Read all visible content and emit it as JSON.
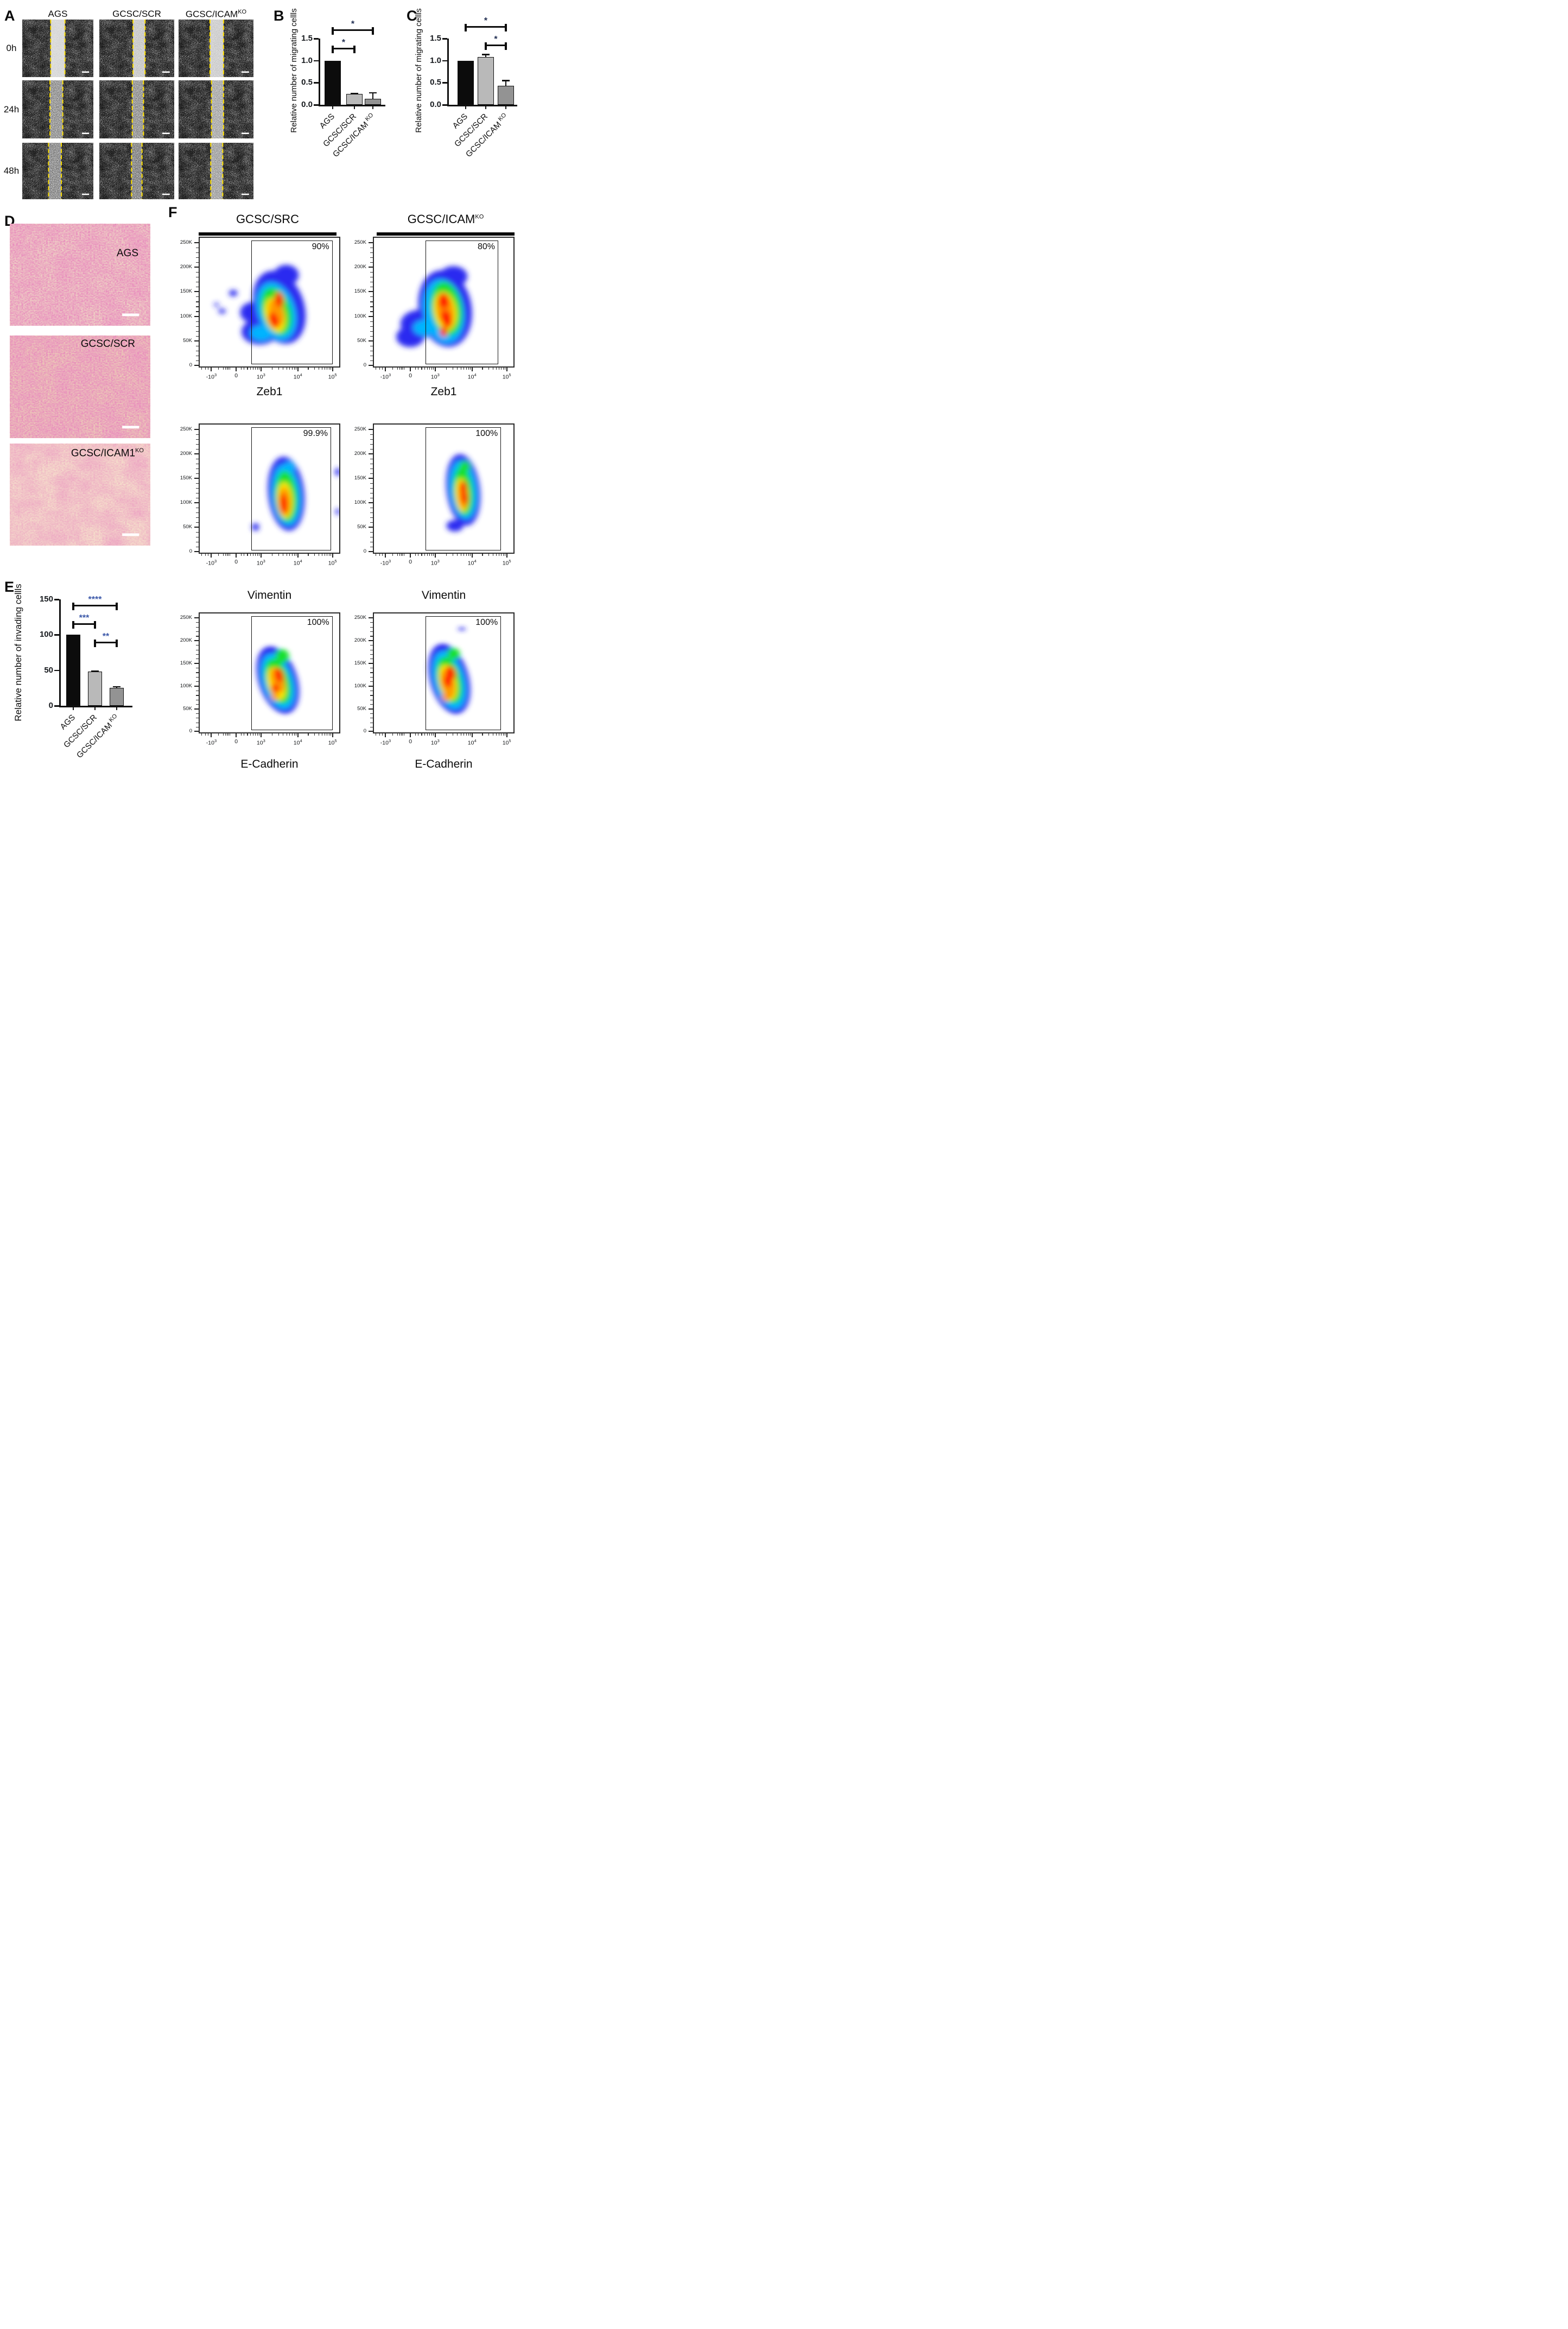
{
  "panels": {
    "A": {
      "letter": "A",
      "col_headers": [
        {
          "t": "AGS"
        },
        {
          "t": "GCSC/SCR"
        },
        {
          "t": "GCSC/ICAM",
          "sup": "KO"
        }
      ],
      "row_labels": [
        "0h",
        "24h",
        "48h"
      ]
    },
    "B": {
      "letter": "B"
    },
    "C": {
      "letter": "C"
    },
    "D": {
      "letter": "D",
      "image_labels": [
        {
          "t": "AGS"
        },
        {
          "t": "GCSC/SCR"
        },
        {
          "t": "GCSC/ICAM1",
          "sup": "KO"
        }
      ]
    },
    "E": {
      "letter": "E"
    },
    "F": {
      "letter": "F",
      "col_headers": [
        {
          "t": "GCSC/SRC"
        },
        {
          "t": "GCSC/ICAM",
          "sup": "KO"
        }
      ]
    }
  },
  "colors": {
    "bar_colors": [
      "#0c0c0c",
      "#b9b9b9",
      "#939393"
    ],
    "axis": "#101010",
    "gate_line": "#151515",
    "yellow_dash": "#ffe000",
    "flow_palette": [
      "#2a2cf0",
      "#00b4ff",
      "#15e02e",
      "#ffe600",
      "#ff9800",
      "#ff1d00"
    ]
  },
  "flow_axes": {
    "y_ticks": [
      "250K",
      "200K",
      "150K",
      "100K",
      "50K",
      "0"
    ],
    "x_ticks": [
      {
        "t": "-10",
        "sup": "3"
      },
      {
        "t": "0"
      },
      {
        "t": "10",
        "sup": "3"
      },
      {
        "t": "10",
        "sup": "4"
      },
      {
        "t": "10",
        "sup": "5"
      }
    ]
  },
  "chart_data": [
    {
      "id": "B",
      "type": "bar",
      "ylabel": "Relative number of migrating cellls",
      "categories": [
        {
          "t": "AGS"
        },
        {
          "t": "GCSC/SCR"
        },
        {
          "t": "GCSC/ICAM",
          "sup": "KO"
        }
      ],
      "values": [
        1.0,
        0.24,
        0.13
      ],
      "errors": [
        0,
        0.035,
        0.15
      ],
      "ylim": [
        0,
        1.5
      ],
      "yticks": [
        "0.0",
        "0.5",
        "1.0",
        "1.5"
      ],
      "sig_color": "#1e2c50",
      "significance": [
        {
          "pair": [
            0,
            2
          ],
          "label": "*"
        },
        {
          "pair": [
            0,
            1
          ],
          "label": "*"
        }
      ]
    },
    {
      "id": "C",
      "type": "bar",
      "ylabel": "Relative number of migrating cellls",
      "categories": [
        {
          "t": "AGS"
        },
        {
          "t": "GCSC/SCR"
        },
        {
          "t": "GCSC/ICAM",
          "sup": "KO"
        }
      ],
      "values": [
        1.0,
        1.08,
        0.43
      ],
      "errors": [
        0,
        0.07,
        0.13
      ],
      "ylim": [
        0,
        1.5
      ],
      "yticks": [
        "0.0",
        "0.5",
        "1.0",
        "1.5"
      ],
      "sig_color": "#1e2c50",
      "significance": [
        {
          "pair": [
            0,
            2
          ],
          "label": "*"
        },
        {
          "pair": [
            1,
            2
          ],
          "label": "*"
        }
      ]
    },
    {
      "id": "E",
      "type": "bar",
      "ylabel": "Relative number of invading cellls",
      "categories": [
        {
          "t": "AGS"
        },
        {
          "t": "GCSC/SCR"
        },
        {
          "t": "GCSC/ICAM",
          "sup": "KO"
        }
      ],
      "values": [
        100,
        48,
        25
      ],
      "errors": [
        0,
        1.5,
        2.5
      ],
      "ylim": [
        0,
        150
      ],
      "yticks": [
        "0",
        "50",
        "100",
        "150"
      ],
      "sig_color": "#3a57a8",
      "significance": [
        {
          "pair": [
            0,
            2
          ],
          "label": "****"
        },
        {
          "pair": [
            0,
            1
          ],
          "label": "***"
        },
        {
          "pair": [
            1,
            2
          ],
          "label": "**"
        }
      ]
    },
    {
      "id": "F1",
      "type": "flow-density",
      "group": "GCSC/SRC",
      "marker": "Zeb1",
      "gated_percent": "90%",
      "gate_right": 0.945,
      "blob": [
        [
          0,
          57,
          54,
          18,
          29,
          -15
        ],
        [
          0,
          62,
          29,
          9,
          8,
          0
        ],
        [
          0,
          43,
          73,
          13,
          10,
          0
        ],
        [
          0,
          38,
          58,
          9,
          8,
          0
        ],
        [
          0,
          24,
          43,
          3,
          2.5,
          0
        ],
        [
          0,
          16,
          57,
          2.5,
          2,
          0
        ],
        [
          0,
          12,
          52,
          1.6,
          1.6,
          0
        ],
        [
          1,
          55,
          57,
          13.5,
          23,
          -15
        ],
        [
          1,
          44,
          74,
          8,
          6,
          0
        ],
        [
          2,
          55,
          57,
          10.5,
          19,
          -15
        ],
        [
          3,
          54,
          60,
          7,
          13.5,
          -12
        ],
        [
          4,
          55,
          58,
          5.2,
          10.5,
          -12
        ],
        [
          5,
          57,
          48,
          3,
          6,
          -8
        ],
        [
          5,
          53,
          64,
          3.4,
          6.5,
          -18
        ]
      ]
    },
    {
      "id": "F2",
      "type": "flow-density",
      "group": "GCSC/ICAM KO",
      "marker": "Zeb1",
      "gated_percent": "80%",
      "gate_right": 0.885,
      "blob": [
        [
          0,
          51,
          55,
          19,
          30,
          -8
        ],
        [
          0,
          33,
          67,
          14,
          11,
          0
        ],
        [
          0,
          26,
          77,
          10,
          8,
          0
        ],
        [
          0,
          57,
          30,
          10,
          8,
          0
        ],
        [
          0,
          44,
          38,
          7,
          6,
          0
        ],
        [
          1,
          50,
          57,
          14.5,
          25,
          -8
        ],
        [
          1,
          36,
          70,
          8,
          6,
          0
        ],
        [
          2,
          52,
          55,
          11,
          21,
          -8
        ],
        [
          3,
          51,
          57,
          8,
          15,
          -8
        ],
        [
          4,
          51,
          56,
          6,
          12,
          -8
        ],
        [
          5,
          50,
          49,
          4,
          6,
          -5
        ],
        [
          5,
          52,
          63,
          4,
          7,
          -15
        ],
        [
          5,
          50,
          73,
          2.6,
          4,
          0
        ]
      ]
    },
    {
      "id": "F3",
      "type": "flow-density",
      "group": "GCSC/SRC",
      "marker": "Vimentin",
      "gated_percent": "99.9%",
      "gate_right": 0.935,
      "blob": [
        [
          0,
          62,
          54,
          13,
          29,
          -5
        ],
        [
          0,
          40,
          80,
          2.6,
          3,
          0
        ],
        [
          0,
          99,
          37,
          2,
          3.2,
          0
        ],
        [
          0,
          99,
          68,
          1.6,
          2.6,
          0
        ],
        [
          1,
          62,
          55,
          10,
          24,
          -5
        ],
        [
          1,
          64,
          34,
          4,
          5,
          0
        ],
        [
          2,
          62,
          56,
          8,
          20,
          -4
        ],
        [
          3,
          61,
          59,
          5.5,
          14,
          -3
        ],
        [
          4,
          61,
          60,
          4.2,
          11,
          -3
        ],
        [
          5,
          60,
          62,
          2.8,
          8,
          -2
        ]
      ]
    },
    {
      "id": "F4",
      "type": "flow-density",
      "group": "GCSC/ICAM KO",
      "marker": "Vimentin",
      "gated_percent": "100%",
      "gate_right": 0.905,
      "blob": [
        [
          0,
          64,
          51,
          12,
          28,
          -6
        ],
        [
          0,
          58,
          79,
          6,
          4.5,
          0
        ],
        [
          1,
          64,
          51,
          9.5,
          23,
          -6
        ],
        [
          2,
          64,
          52,
          7,
          19,
          -5
        ],
        [
          2,
          65,
          33,
          4,
          4.5,
          0
        ],
        [
          3,
          63,
          55,
          4.6,
          13,
          -4
        ],
        [
          4,
          64,
          56,
          3.6,
          10,
          -4
        ],
        [
          5,
          64,
          49,
          2.6,
          5,
          -3
        ],
        [
          5,
          65,
          57,
          2.4,
          5,
          -8
        ]
      ]
    },
    {
      "id": "F5",
      "type": "flow-density",
      "group": "GCSC/SRC",
      "marker": "E-Cadherin",
      "gated_percent": "100%",
      "gate_right": 0.945,
      "blob": [
        [
          0,
          56,
          56,
          14,
          29,
          -14
        ],
        [
          1,
          56,
          57,
          11,
          24,
          -14
        ],
        [
          2,
          56,
          57,
          8.5,
          19.5,
          -14
        ],
        [
          2,
          59,
          36,
          5,
          6,
          0
        ],
        [
          3,
          55,
          59,
          6,
          14,
          -12
        ],
        [
          4,
          56,
          56,
          4.6,
          11,
          -12
        ],
        [
          4,
          54,
          70,
          2.6,
          3.2,
          0
        ],
        [
          5,
          57,
          52,
          3,
          6,
          -10
        ],
        [
          5,
          54,
          63,
          2.6,
          4,
          0
        ]
      ]
    },
    {
      "id": "F6",
      "type": "flow-density",
      "group": "GCSC/ICAM KO",
      "marker": "E-Cadherin",
      "gated_percent": "100%",
      "gate_right": 0.905,
      "blob": [
        [
          0,
          54,
          55,
          14,
          30,
          -12
        ],
        [
          0,
          63,
          13,
          2.6,
          1.3,
          0
        ],
        [
          1,
          54,
          56,
          11,
          25,
          -12
        ],
        [
          2,
          54,
          56,
          8.5,
          20,
          -12
        ],
        [
          2,
          57,
          34,
          4.6,
          5,
          0
        ],
        [
          3,
          53,
          58,
          6,
          15,
          -10
        ],
        [
          4,
          53,
          59,
          4.6,
          12,
          -10
        ],
        [
          4,
          52,
          70,
          3,
          4,
          0
        ],
        [
          5,
          55,
          50,
          3.4,
          6,
          -12
        ],
        [
          5,
          53,
          57,
          3,
          5,
          -10
        ]
      ]
    }
  ]
}
